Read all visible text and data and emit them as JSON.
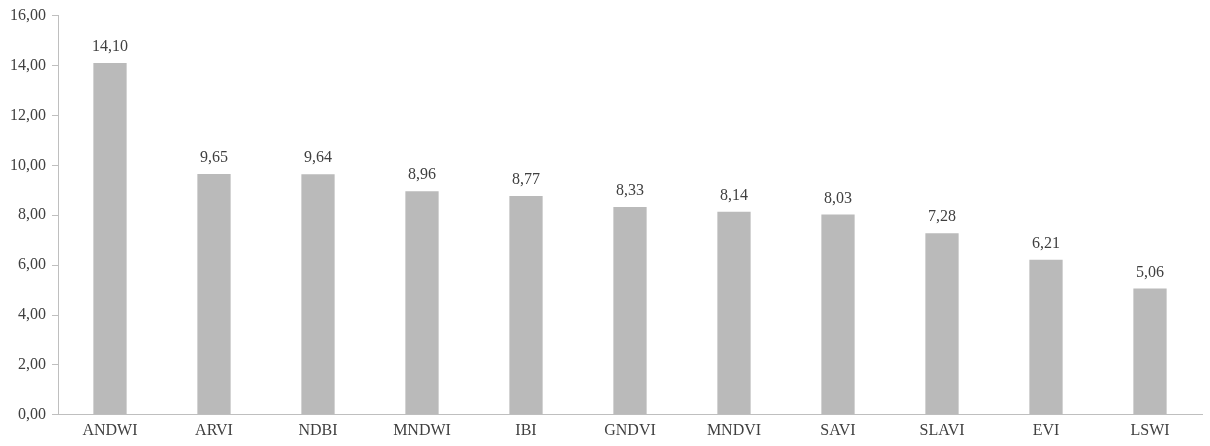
{
  "chart_data": {
    "type": "bar",
    "categories": [
      "ANDWI",
      "ARVI",
      "NDBI",
      "MNDWI",
      "IBI",
      "GNDVI",
      "MNDVI",
      "SAVI",
      "SLAVI",
      "EVI",
      "LSWI"
    ],
    "values": [
      14.1,
      9.65,
      9.64,
      8.96,
      8.77,
      8.33,
      8.14,
      8.03,
      7.28,
      6.21,
      5.06
    ],
    "value_labels": [
      "14,10",
      "9,65",
      "9,64",
      "8,96",
      "8,77",
      "8,33",
      "8,14",
      "8,03",
      "7,28",
      "6,21",
      "5,06"
    ],
    "color": "#bababa",
    "ylim": [
      0,
      16
    ],
    "yticks": [
      {
        "value": 0,
        "label": "0,00"
      },
      {
        "value": 2,
        "label": "2,00"
      },
      {
        "value": 4,
        "label": "4,00"
      },
      {
        "value": 6,
        "label": "6,00"
      },
      {
        "value": 8,
        "label": "8,00"
      },
      {
        "value": 10,
        "label": "10,00"
      },
      {
        "value": 12,
        "label": "12,00"
      },
      {
        "value": 14,
        "label": "14,00"
      },
      {
        "value": 16,
        "label": "16,00"
      }
    ],
    "grid": false,
    "legend": false
  }
}
